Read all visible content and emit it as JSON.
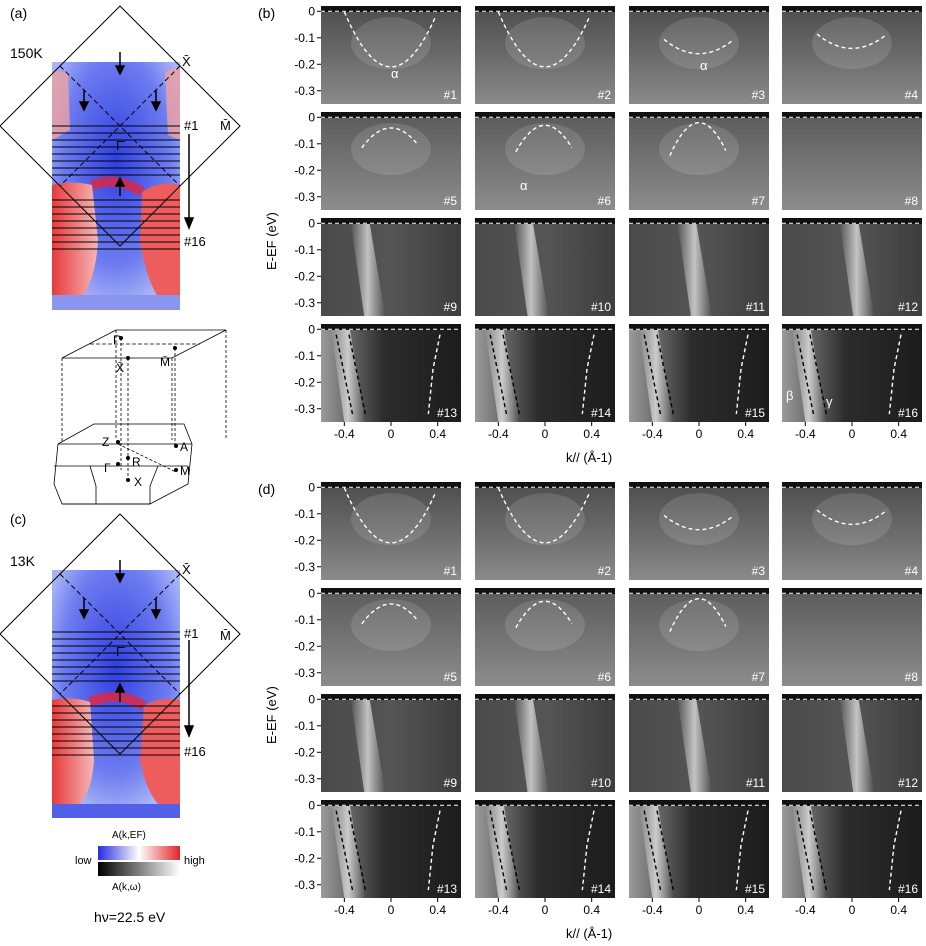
{
  "panels": {
    "a": {
      "label": "(a)",
      "temp": "150K",
      "x_point": "X̄",
      "m_point": "M̄",
      "gamma_point": "Γ̄",
      "cut_first": "#1",
      "cut_last": "#16"
    },
    "c": {
      "label": "(c)",
      "temp": "13K",
      "x_point": "X̄",
      "m_point": "M̄",
      "gamma_point": "Γ̄",
      "cut_first": "#1",
      "cut_last": "#16"
    },
    "b": {
      "label": "(b)"
    },
    "d": {
      "label": "(d)"
    }
  },
  "bz": {
    "top_gamma": "Γ̄",
    "top_x": "X̄",
    "top_m": "M̄",
    "z": "Z",
    "a": "A",
    "r": "R",
    "gamma": "Γ",
    "m": "M",
    "x": "X"
  },
  "colorbar": {
    "top_label": "A(k,EF)",
    "low": "low",
    "high": "high",
    "bottom_label": "A(k,ω)"
  },
  "photon_energy": "hν=22.5 eV",
  "axes": {
    "ylabel": "E-EF (eV)",
    "xlabel": "k// (Å-1)",
    "yticks": [
      "0",
      "-0.1",
      "-0.2",
      "-0.3"
    ],
    "xticks": [
      "-0.4",
      "0",
      "0.4"
    ]
  },
  "cut_labels": [
    "#1",
    "#2",
    "#3",
    "#4",
    "#5",
    "#6",
    "#7",
    "#8",
    "#9",
    "#10",
    "#11",
    "#12",
    "#13",
    "#14",
    "#15",
    "#16"
  ],
  "band_labels": {
    "alpha": "α",
    "beta": "β",
    "gamma": "γ"
  },
  "colors": {
    "map_blue": "#3d4fe0",
    "map_red": "#e8383c",
    "arpes_dark": "#2a2a2a",
    "arpes_bright": "#d9d9d9"
  },
  "chart_data": [
    {
      "type": "heatmap",
      "panel": "b",
      "ylabel": "E-EF (eV)",
      "xlabel": "k// (Å-1)",
      "xlim": [
        -0.6,
        0.6
      ],
      "ylim": [
        -0.35,
        0.02
      ],
      "cuts": [
        "#1",
        "#2",
        "#3",
        "#4",
        "#5",
        "#6",
        "#7",
        "#8",
        "#9",
        "#10",
        "#11",
        "#12",
        "#13",
        "#14",
        "#15",
        "#16"
      ]
    },
    {
      "type": "heatmap",
      "panel": "d",
      "ylabel": "E-EF (eV)",
      "xlabel": "k// (Å-1)",
      "xlim": [
        -0.6,
        0.6
      ],
      "ylim": [
        -0.35,
        0.02
      ],
      "cuts": [
        "#1",
        "#2",
        "#3",
        "#4",
        "#5",
        "#6",
        "#7",
        "#8",
        "#9",
        "#10",
        "#11",
        "#12",
        "#13",
        "#14",
        "#15",
        "#16"
      ]
    }
  ]
}
